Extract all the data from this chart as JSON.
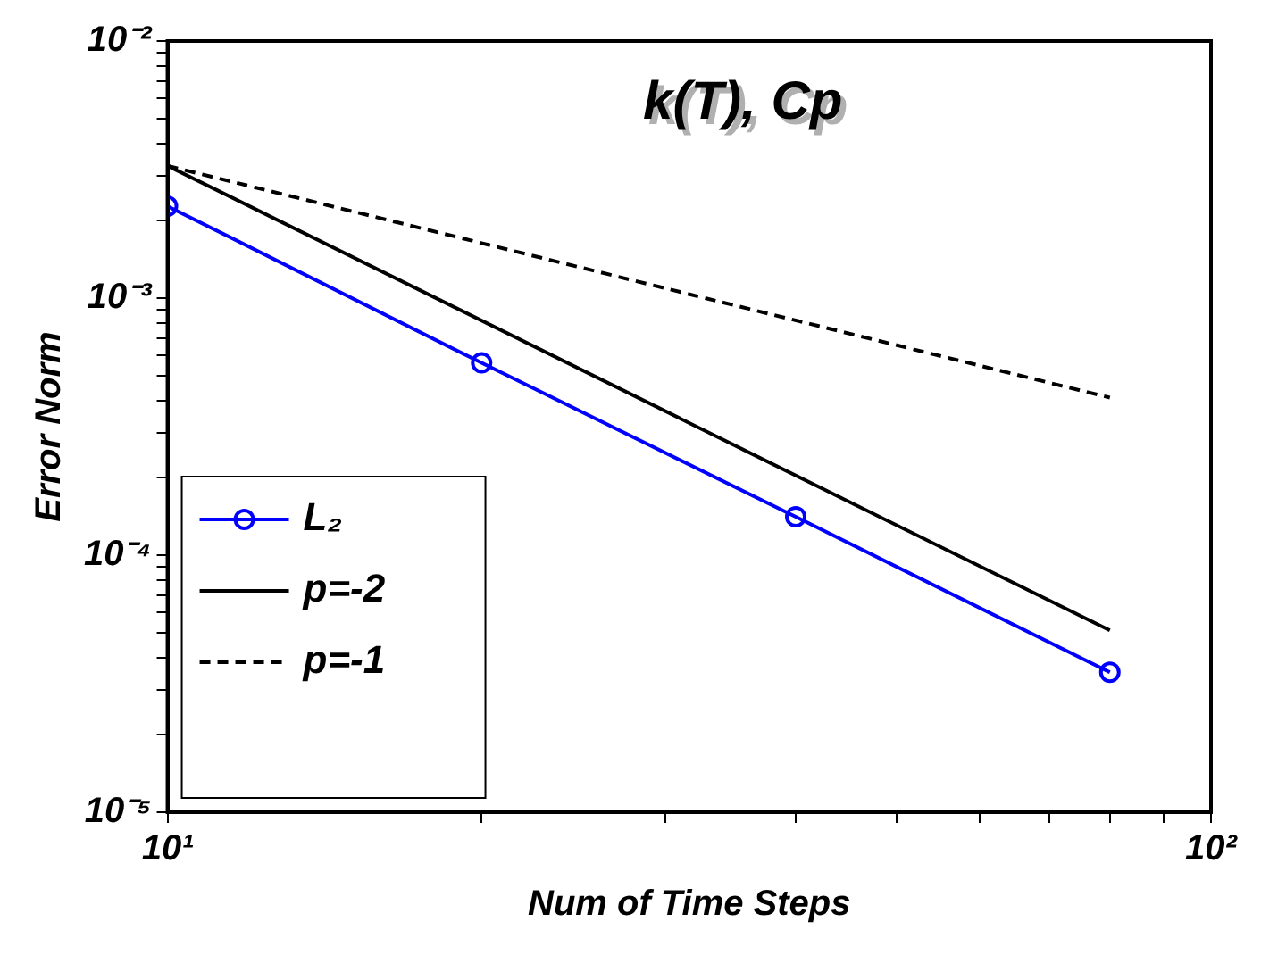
{
  "chart_data": {
    "type": "line",
    "title": "k(T), Cp",
    "xlabel": "Num of Time Steps",
    "ylabel": "Error Norm",
    "log": "xy",
    "grid": false,
    "legend": "bottom left",
    "xlim": [
      10,
      100
    ],
    "ylim": [
      1e-05,
      0.01
    ],
    "xticks": [
      {
        "value": 10,
        "label": "10¹"
      },
      {
        "value": 20,
        "label": null
      },
      {
        "value": 30,
        "label": null
      },
      {
        "value": 40,
        "label": null
      },
      {
        "value": 50,
        "label": null
      },
      {
        "value": 60,
        "label": null
      },
      {
        "value": 70,
        "label": null
      },
      {
        "value": 80,
        "label": null
      },
      {
        "value": 90,
        "label": null
      },
      {
        "value": 100,
        "label": "10²"
      }
    ],
    "yticks": [
      {
        "value": 1e-05,
        "label": "10⁻⁵"
      },
      {
        "value": 2e-05,
        "label": null
      },
      {
        "value": 3e-05,
        "label": null
      },
      {
        "value": 4e-05,
        "label": null
      },
      {
        "value": 5e-05,
        "label": null
      },
      {
        "value": 6e-05,
        "label": null
      },
      {
        "value": 7e-05,
        "label": null
      },
      {
        "value": 8e-05,
        "label": null
      },
      {
        "value": 9e-05,
        "label": null
      },
      {
        "value": 0.0001,
        "label": "10⁻⁴"
      },
      {
        "value": 0.0002,
        "label": null
      },
      {
        "value": 0.0003,
        "label": null
      },
      {
        "value": 0.0004,
        "label": null
      },
      {
        "value": 0.0005,
        "label": null
      },
      {
        "value": 0.0006,
        "label": null
      },
      {
        "value": 0.0007,
        "label": null
      },
      {
        "value": 0.0008,
        "label": null
      },
      {
        "value": 0.0009,
        "label": null
      },
      {
        "value": 0.001,
        "label": "10⁻³"
      },
      {
        "value": 0.002,
        "label": null
      },
      {
        "value": 0.003,
        "label": null
      },
      {
        "value": 0.004,
        "label": null
      },
      {
        "value": 0.005,
        "label": null
      },
      {
        "value": 0.006,
        "label": null
      },
      {
        "value": 0.007,
        "label": null
      },
      {
        "value": 0.008,
        "label": null
      },
      {
        "value": 0.009,
        "label": null
      },
      {
        "value": 0.01,
        "label": "10⁻²"
      }
    ],
    "series": [
      {
        "name": "L₂",
        "color": "#0000ff",
        "marker": "circle",
        "line_style": "solid",
        "x": [
          10,
          20,
          40,
          80
        ],
        "values": [
          0.00228,
          0.00056,
          0.000141,
          3.5e-05
        ]
      },
      {
        "name": "p=-2",
        "color": "#000000",
        "marker": "none",
        "line_style": "solid",
        "x": [
          10,
          80
        ],
        "values": [
          0.00327,
          5.1e-05
        ]
      },
      {
        "name": "p=-1",
        "color": "#000000",
        "marker": "none",
        "line_style": "dashed",
        "x": [
          10,
          80
        ],
        "values": [
          0.00327,
          0.00041
        ]
      }
    ]
  }
}
